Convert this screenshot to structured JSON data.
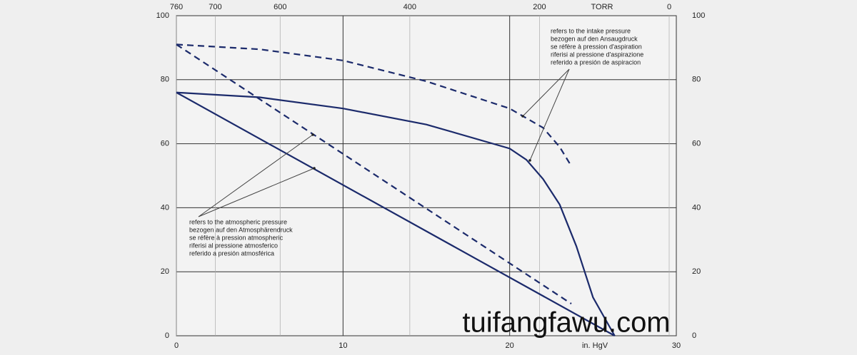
{
  "chart_data": {
    "type": "line",
    "xlabel": "in. HgV",
    "x2label": "TORR",
    "xlim": [
      0,
      30
    ],
    "xticks": [
      0,
      10,
      20,
      30
    ],
    "x2lim": [
      760,
      0
    ],
    "x2ticks": [
      760,
      700,
      600,
      400,
      200,
      0
    ],
    "ylim": [
      0,
      100
    ],
    "yticks": [
      0,
      20,
      40,
      60,
      80,
      100
    ],
    "grid": true,
    "series": [
      {
        "color": "#1b2a6b",
        "dash": false,
        "x": [
          0,
          5,
          10,
          15,
          20,
          21,
          22,
          23,
          24,
          25,
          26.3
        ],
        "values": [
          76,
          74.5,
          71,
          66,
          58.5,
          55,
          49,
          41,
          28,
          12,
          0
        ]
      },
      {
        "color": "#1b2a6b",
        "dash": true,
        "x": [
          0,
          5,
          10,
          15,
          20,
          22,
          23,
          23.7
        ],
        "values": [
          91,
          89.5,
          86,
          79.5,
          71,
          65,
          59,
          53
        ]
      },
      {
        "color": "#1b2a6b",
        "dash": false,
        "x": [
          0,
          26.3
        ],
        "values": [
          76,
          0
        ]
      },
      {
        "color": "#1b2a6b",
        "dash": true,
        "x": [
          0,
          23.7
        ],
        "values": [
          91,
          10
        ]
      }
    ],
    "annotations": [
      [
        "refers to the intake pressure",
        "bezogen auf den Ansaugdruck",
        "se réfère à pression d'aspiration",
        "riferisi al pressione d'aspirazione",
        "referido a presión de aspiracion"
      ],
      [
        "refers to the atmospheric pressure",
        "bezogen auf den Atmosphärendruck",
        "se réfère à pression atmospheric",
        "riferisi al pressione atmosferico",
        "referido a presión atmosférica"
      ]
    ],
    "watermark": "tuifangfawu.com"
  }
}
